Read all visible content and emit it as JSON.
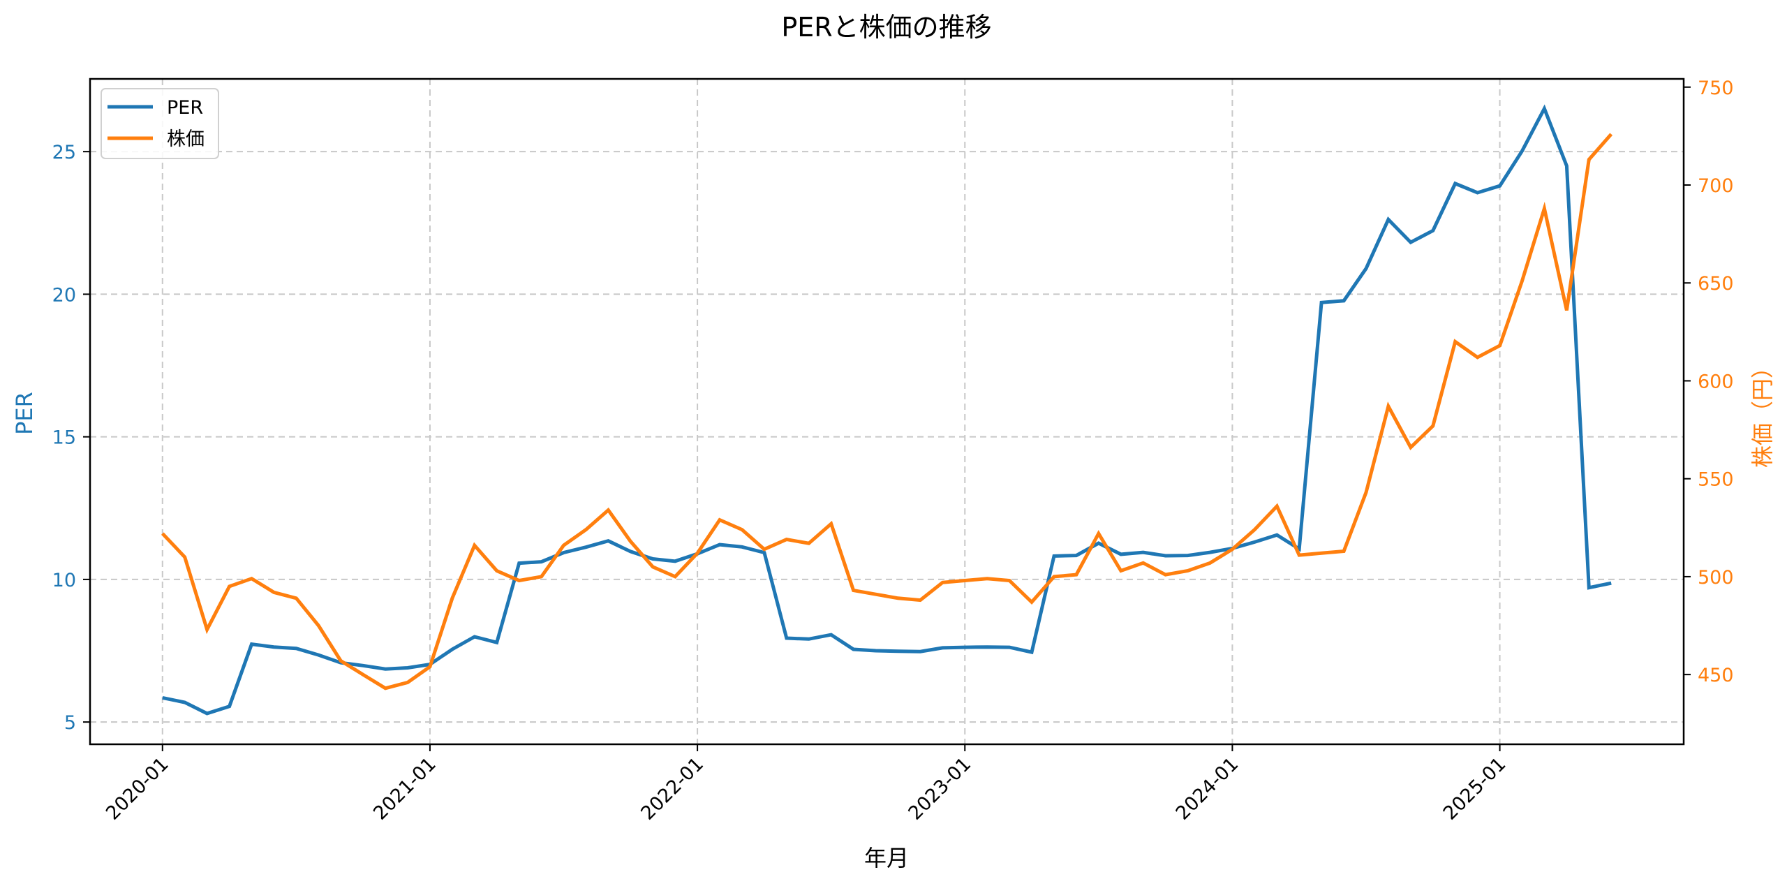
{
  "figure": {
    "title": "PERと株価の推移",
    "xlabel": "年月",
    "ylabel_left": "PER",
    "ylabel_right": "株価（円）",
    "legend": [
      {
        "label": "PER",
        "color": "#1f77b4"
      },
      {
        "label": "株価",
        "color": "#ff7f0e"
      }
    ],
    "colors": {
      "per": "#1f77b4",
      "price": "#ff7f0e",
      "grid": "#c8c8c8",
      "axis": "#000000"
    }
  },
  "chart_data": {
    "type": "line",
    "title": "PERと株価の推移",
    "xlabel": "年月",
    "ylabel": "PER",
    "ylabel_secondary": "株価（円）",
    "grid": true,
    "grid_style": "dashed",
    "legend_position": "upper left",
    "x_tick_labels": [
      "2020-01",
      "2021-01",
      "2022-01",
      "2023-01",
      "2024-01",
      "2025-01"
    ],
    "x_tick_rotation": 45,
    "y_ticks_left": [
      5,
      10,
      15,
      20,
      25
    ],
    "y_ticks_right": [
      450,
      500,
      550,
      600,
      650,
      700,
      750
    ],
    "xlim_months": [
      -3.25,
      68.25
    ],
    "ylim_left": [
      4.22,
      27.55
    ],
    "ylim_right": [
      414.4,
      754.2
    ],
    "x": [
      "2020-01",
      "2020-02",
      "2020-03",
      "2020-04",
      "2020-05",
      "2020-06",
      "2020-07",
      "2020-08",
      "2020-09",
      "2020-10",
      "2020-11",
      "2020-12",
      "2021-01",
      "2021-02",
      "2021-03",
      "2021-04",
      "2021-05",
      "2021-06",
      "2021-07",
      "2021-08",
      "2021-09",
      "2021-10",
      "2021-11",
      "2021-12",
      "2022-01",
      "2022-02",
      "2022-03",
      "2022-04",
      "2022-05",
      "2022-06",
      "2022-07",
      "2022-08",
      "2022-09",
      "2022-10",
      "2022-11",
      "2022-12",
      "2023-01",
      "2023-02",
      "2023-03",
      "2023-04",
      "2023-05",
      "2023-06",
      "2023-07",
      "2023-08",
      "2023-09",
      "2023-10",
      "2023-11",
      "2023-12",
      "2024-01",
      "2024-02",
      "2024-03",
      "2024-04",
      "2024-05",
      "2024-06",
      "2024-07",
      "2024-08",
      "2024-09",
      "2024-10",
      "2024-11",
      "2024-12",
      "2025-01",
      "2025-02",
      "2025-03",
      "2025-04",
      "2025-05",
      "2025-06"
    ],
    "series": [
      {
        "name": "PER",
        "axis": "left",
        "color": "#1f77b4",
        "values": [
          5.85,
          5.69,
          5.3,
          5.55,
          7.73,
          7.63,
          7.58,
          7.35,
          7.08,
          6.98,
          6.86,
          6.9,
          7.02,
          7.55,
          7.99,
          7.79,
          10.57,
          10.62,
          10.94,
          11.13,
          11.35,
          10.98,
          10.72,
          10.64,
          10.9,
          11.22,
          11.14,
          10.94,
          7.94,
          7.91,
          8.06,
          7.55,
          7.5,
          7.48,
          7.47,
          7.6,
          7.62,
          7.63,
          7.62,
          7.45,
          10.82,
          10.84,
          11.27,
          10.88,
          10.95,
          10.83,
          10.84,
          10.95,
          11.09,
          11.31,
          11.56,
          11.07,
          19.71,
          19.77,
          20.9,
          22.62,
          21.82,
          22.23,
          23.88,
          23.56,
          23.8,
          25.02,
          26.51,
          24.5,
          9.71,
          9.87
        ]
      },
      {
        "name": "株価",
        "axis": "right",
        "color": "#ff7f0e",
        "values": [
          522,
          510,
          473,
          495,
          499,
          492,
          489,
          475,
          457,
          450,
          443,
          446,
          454,
          489,
          516,
          503,
          498,
          500,
          516,
          524,
          534,
          518,
          505,
          500,
          512,
          529,
          524,
          514,
          519,
          517,
          527,
          493,
          491,
          489,
          488,
          497,
          498,
          499,
          498,
          487,
          500,
          501,
          522,
          503,
          507,
          501,
          503,
          507,
          514,
          524,
          536,
          511,
          512,
          513,
          543,
          587,
          566,
          577,
          620,
          612,
          618,
          651,
          688,
          636,
          713,
          726
        ]
      }
    ]
  }
}
